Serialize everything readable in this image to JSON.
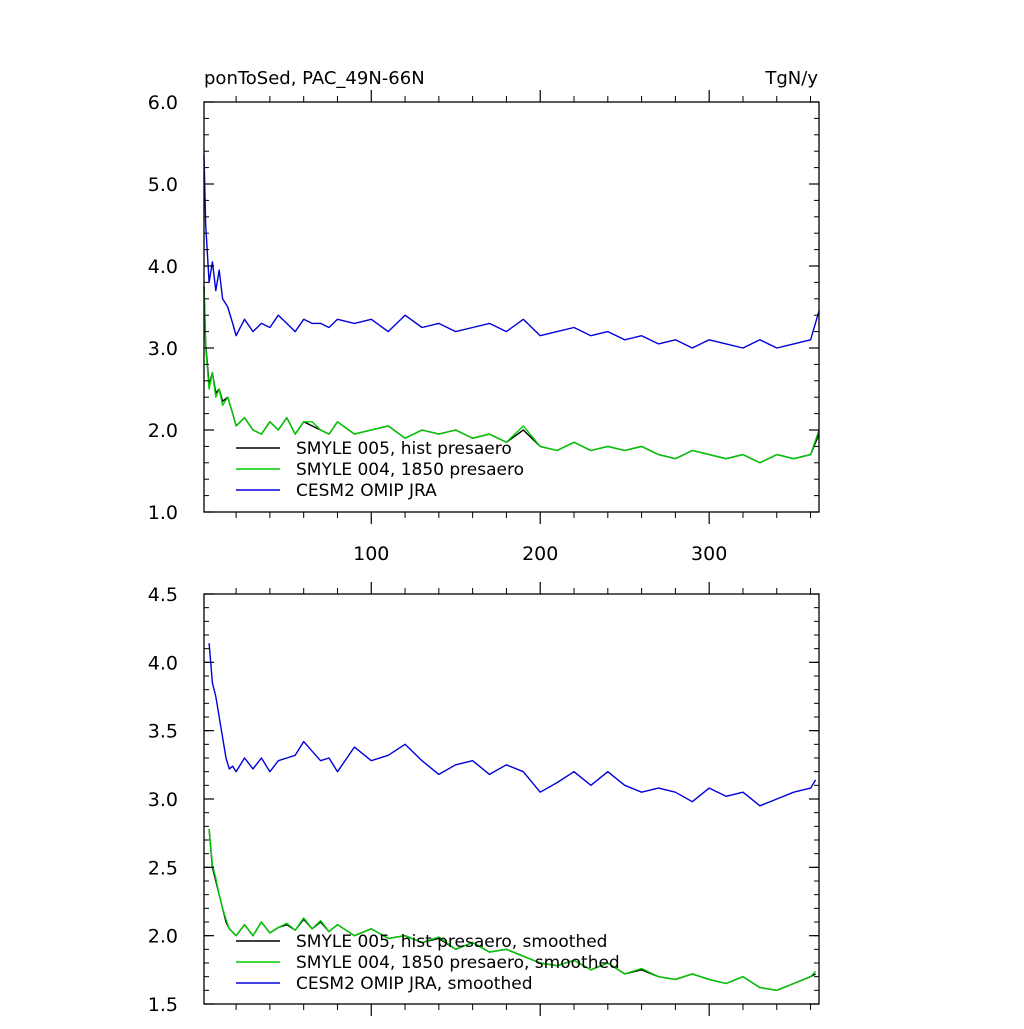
{
  "chart_data": [
    {
      "type": "line",
      "title": "ponToSed, PAC_49N-66N",
      "units": "TgN/y",
      "xlim": [
        1,
        365
      ],
      "ylim": [
        1.0,
        6.0
      ],
      "x_ticks": [
        100,
        200,
        300
      ],
      "x_tick_labels": [
        "100",
        "200",
        "300"
      ],
      "y_ticks": [
        1.0,
        2.0,
        3.0,
        4.0,
        5.0,
        6.0
      ],
      "y_tick_labels": [
        "1.0",
        "2.0",
        "3.0",
        "4.0",
        "5.0",
        "6.0"
      ],
      "grid": false,
      "legend": "bottom-left",
      "series": [
        {
          "name": "SMYLE 005, hist presaero",
          "color": "#000000",
          "x": [
            1,
            2,
            4,
            6,
            8,
            10,
            12,
            15,
            18,
            20,
            25,
            30,
            35,
            40,
            45,
            50,
            55,
            60,
            65,
            70,
            75,
            80,
            90,
            100,
            110,
            120,
            130,
            140,
            150,
            160,
            170,
            180,
            190,
            200,
            210,
            220,
            230,
            240,
            250,
            260,
            270,
            280,
            290,
            300,
            310,
            320,
            330,
            340,
            350,
            360,
            365
          ],
          "y": [
            3.75,
            3.05,
            2.55,
            2.7,
            2.45,
            2.5,
            2.35,
            2.4,
            2.2,
            2.05,
            2.15,
            2.0,
            1.95,
            2.1,
            2.0,
            2.15,
            1.95,
            2.1,
            2.05,
            2.0,
            1.95,
            2.1,
            1.95,
            2.0,
            2.05,
            1.9,
            2.0,
            1.95,
            2.0,
            1.9,
            1.95,
            1.85,
            2.0,
            1.8,
            1.75,
            1.85,
            1.75,
            1.8,
            1.75,
            1.8,
            1.7,
            1.65,
            1.75,
            1.7,
            1.65,
            1.7,
            1.6,
            1.7,
            1.65,
            1.7,
            1.95
          ]
        },
        {
          "name": "SMYLE 004, 1850 presaero",
          "color": "#00cc00",
          "x": [
            1,
            2,
            4,
            6,
            8,
            10,
            12,
            15,
            18,
            20,
            25,
            30,
            35,
            40,
            45,
            50,
            55,
            60,
            65,
            70,
            75,
            80,
            90,
            100,
            110,
            120,
            130,
            140,
            150,
            160,
            170,
            180,
            190,
            200,
            210,
            220,
            230,
            240,
            250,
            260,
            270,
            280,
            290,
            300,
            310,
            320,
            330,
            340,
            350,
            360,
            365
          ],
          "y": [
            3.75,
            3.0,
            2.5,
            2.7,
            2.4,
            2.5,
            2.3,
            2.4,
            2.2,
            2.05,
            2.15,
            2.0,
            1.95,
            2.1,
            2.0,
            2.15,
            1.95,
            2.1,
            2.1,
            2.0,
            1.95,
            2.1,
            1.95,
            2.0,
            2.05,
            1.9,
            2.0,
            1.95,
            2.0,
            1.9,
            1.95,
            1.85,
            2.05,
            1.8,
            1.75,
            1.85,
            1.75,
            1.8,
            1.75,
            1.8,
            1.7,
            1.65,
            1.75,
            1.7,
            1.65,
            1.7,
            1.6,
            1.7,
            1.65,
            1.7,
            2.0
          ]
        },
        {
          "name": "CESM2 OMIP JRA",
          "color": "#0000dd",
          "x": [
            1,
            2,
            4,
            6,
            8,
            10,
            12,
            15,
            18,
            20,
            25,
            30,
            35,
            40,
            45,
            50,
            55,
            60,
            65,
            70,
            75,
            80,
            90,
            100,
            110,
            120,
            130,
            140,
            150,
            160,
            170,
            180,
            190,
            200,
            210,
            220,
            230,
            240,
            250,
            260,
            270,
            280,
            290,
            300,
            310,
            320,
            330,
            340,
            350,
            360,
            365
          ],
          "y": [
            5.35,
            4.5,
            3.8,
            4.05,
            3.7,
            3.95,
            3.6,
            3.5,
            3.3,
            3.15,
            3.35,
            3.2,
            3.3,
            3.25,
            3.4,
            3.3,
            3.2,
            3.35,
            3.3,
            3.3,
            3.25,
            3.35,
            3.3,
            3.35,
            3.2,
            3.4,
            3.25,
            3.3,
            3.2,
            3.25,
            3.3,
            3.2,
            3.35,
            3.15,
            3.2,
            3.25,
            3.15,
            3.2,
            3.1,
            3.15,
            3.05,
            3.1,
            3.0,
            3.1,
            3.05,
            3.0,
            3.1,
            3.0,
            3.05,
            3.1,
            3.45
          ]
        }
      ]
    },
    {
      "type": "line",
      "xlim": [
        1,
        365
      ],
      "ylim": [
        1.5,
        4.5
      ],
      "x_ticks": [
        100,
        200,
        300
      ],
      "y_ticks": [
        1.5,
        2.0,
        2.5,
        3.0,
        3.5,
        4.0,
        4.5
      ],
      "y_tick_labels": [
        "1.5",
        "2.0",
        "2.5",
        "3.0",
        "3.5",
        "4.0",
        "4.5"
      ],
      "grid": false,
      "legend": "bottom-left",
      "series": [
        {
          "name": "SMYLE 005, hist presaero, smoothed",
          "color": "#000000",
          "x": [
            4,
            6,
            8,
            10,
            12,
            14,
            16,
            20,
            25,
            30,
            35,
            40,
            45,
            50,
            55,
            60,
            65,
            70,
            75,
            80,
            90,
            100,
            110,
            120,
            130,
            140,
            150,
            160,
            170,
            180,
            190,
            200,
            210,
            220,
            230,
            240,
            250,
            260,
            270,
            280,
            290,
            300,
            310,
            320,
            330,
            340,
            350,
            360,
            363
          ],
          "y": [
            2.78,
            2.5,
            2.4,
            2.3,
            2.2,
            2.1,
            2.05,
            2.0,
            2.08,
            2.0,
            2.1,
            2.02,
            2.06,
            2.08,
            2.04,
            2.12,
            2.05,
            2.1,
            2.03,
            2.08,
            2.0,
            2.05,
            1.98,
            2.0,
            1.95,
            1.98,
            1.9,
            1.95,
            1.88,
            1.9,
            1.85,
            1.8,
            1.78,
            1.82,
            1.75,
            1.8,
            1.72,
            1.75,
            1.7,
            1.68,
            1.72,
            1.68,
            1.65,
            1.7,
            1.62,
            1.6,
            1.65,
            1.7,
            1.72
          ]
        },
        {
          "name": "SMYLE 004, 1850 presaero, smoothed",
          "color": "#00cc00",
          "x": [
            4,
            6,
            8,
            10,
            12,
            14,
            16,
            20,
            25,
            30,
            35,
            40,
            45,
            50,
            55,
            60,
            65,
            70,
            75,
            80,
            90,
            100,
            110,
            120,
            130,
            140,
            150,
            160,
            170,
            180,
            190,
            200,
            210,
            220,
            230,
            240,
            250,
            260,
            270,
            280,
            290,
            300,
            310,
            320,
            330,
            340,
            350,
            360,
            363
          ],
          "y": [
            2.78,
            2.52,
            2.42,
            2.3,
            2.2,
            2.12,
            2.05,
            2.0,
            2.08,
            2.0,
            2.1,
            2.02,
            2.06,
            2.09,
            2.04,
            2.13,
            2.05,
            2.11,
            2.03,
            2.08,
            2.0,
            2.05,
            1.98,
            2.0,
            1.95,
            1.99,
            1.9,
            1.95,
            1.88,
            1.9,
            1.85,
            1.8,
            1.78,
            1.82,
            1.75,
            1.8,
            1.72,
            1.76,
            1.7,
            1.68,
            1.72,
            1.68,
            1.65,
            1.7,
            1.62,
            1.6,
            1.65,
            1.7,
            1.74
          ]
        },
        {
          "name": "CESM2 OMIP JRA, smoothed",
          "color": "#0000dd",
          "x": [
            4,
            6,
            8,
            10,
            12,
            14,
            16,
            18,
            20,
            25,
            30,
            35,
            40,
            45,
            50,
            55,
            60,
            65,
            70,
            75,
            80,
            90,
            100,
            110,
            120,
            130,
            140,
            150,
            160,
            170,
            180,
            190,
            200,
            210,
            220,
            230,
            240,
            250,
            260,
            270,
            280,
            290,
            300,
            310,
            320,
            330,
            340,
            350,
            360,
            363
          ],
          "y": [
            4.14,
            3.85,
            3.75,
            3.6,
            3.45,
            3.3,
            3.22,
            3.24,
            3.2,
            3.3,
            3.22,
            3.3,
            3.2,
            3.28,
            3.3,
            3.32,
            3.42,
            3.35,
            3.28,
            3.3,
            3.2,
            3.38,
            3.28,
            3.32,
            3.4,
            3.28,
            3.18,
            3.25,
            3.28,
            3.18,
            3.25,
            3.2,
            3.05,
            3.12,
            3.2,
            3.1,
            3.2,
            3.1,
            3.05,
            3.08,
            3.05,
            2.98,
            3.08,
            3.02,
            3.05,
            2.95,
            3.0,
            3.05,
            3.08,
            3.14
          ]
        }
      ]
    }
  ]
}
